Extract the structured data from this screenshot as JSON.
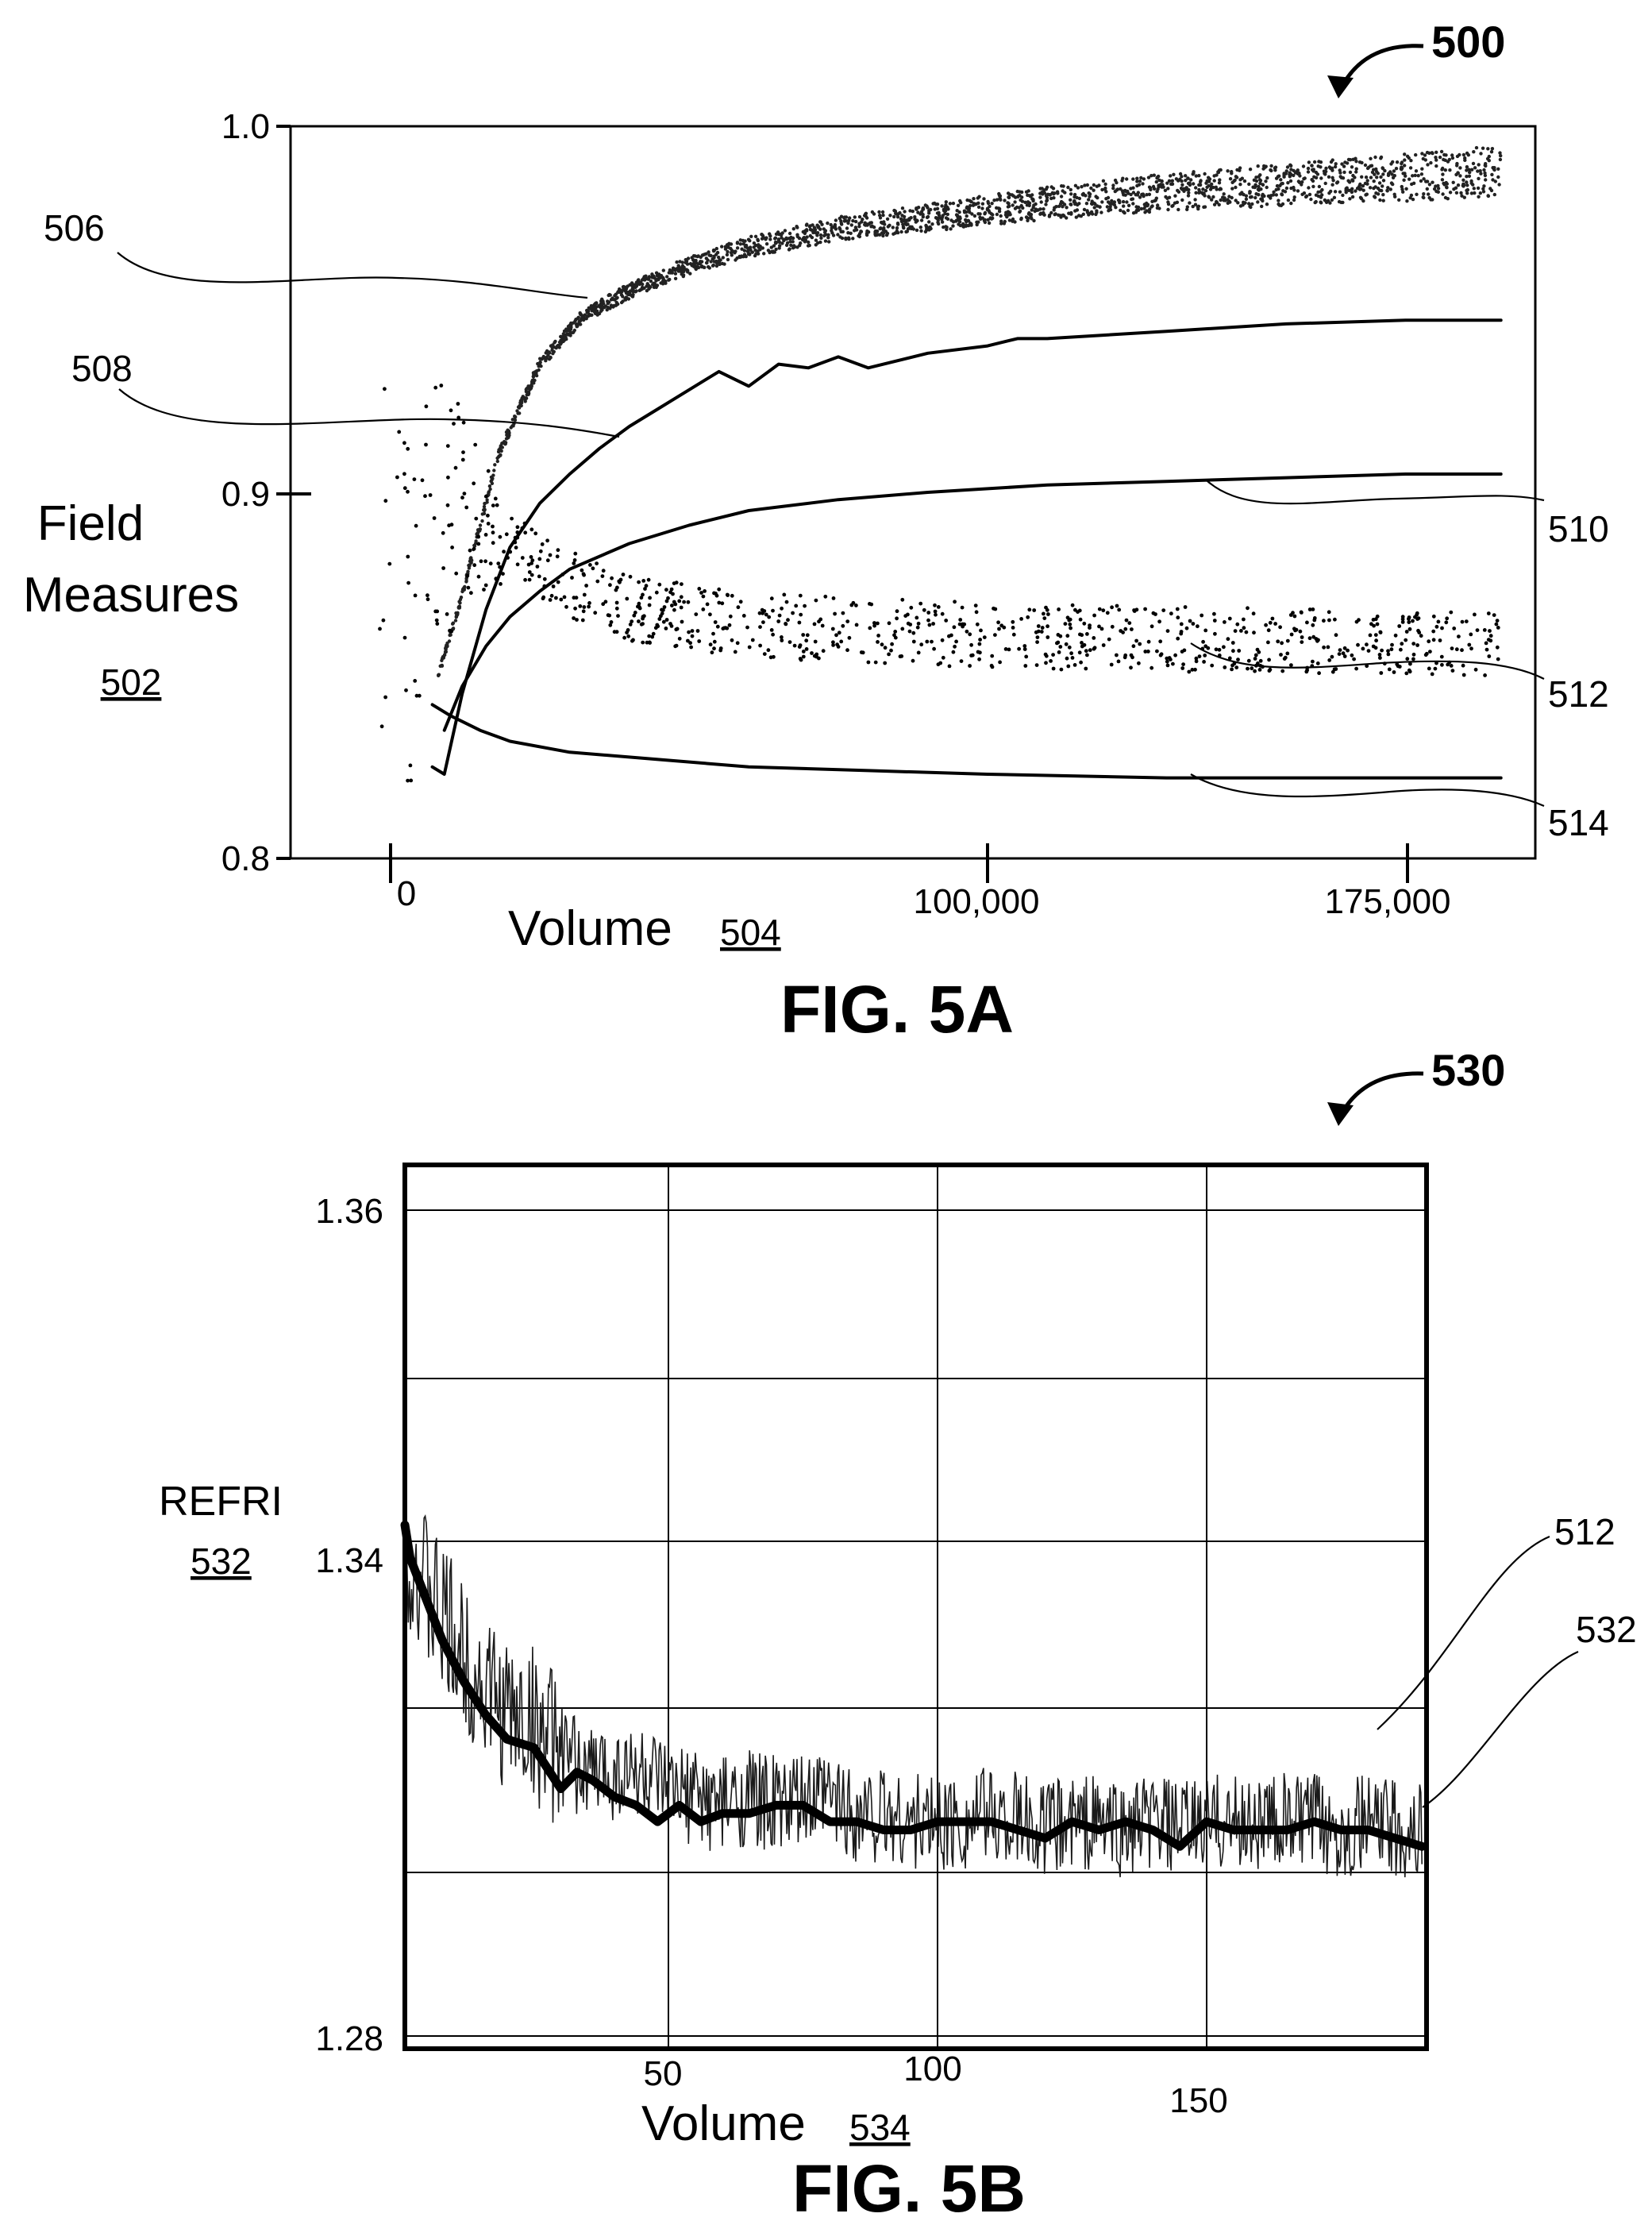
{
  "figures": {
    "fig5a": {
      "ref_number": "500",
      "caption": "FIG. 5A",
      "y_axis": {
        "label_line1": "Field",
        "label_line2": "Measures",
        "ref": "502",
        "ticks": [
          "1.0",
          "0.9",
          "0.8"
        ]
      },
      "x_axis": {
        "label": "Volume",
        "ref": "504",
        "ticks": [
          "0",
          "100,000",
          "175,000"
        ]
      },
      "callouts": [
        "506",
        "508",
        "510",
        "512",
        "514"
      ]
    },
    "fig5b": {
      "ref_number": "530",
      "caption": "FIG. 5B",
      "y_axis": {
        "label": "REFRI",
        "ref": "532",
        "ticks": [
          "1.36",
          "1.34",
          "1.28"
        ]
      },
      "x_axis": {
        "label": "Volume",
        "ref": "534",
        "ticks": [
          "50",
          "100",
          "150"
        ]
      },
      "callouts": [
        "512",
        "532"
      ]
    }
  },
  "chart_data": [
    {
      "type": "line",
      "xlim": [
        -2000,
        190000
      ],
      "ylim": [
        0.8,
        1.0
      ],
      "x_ticks": [
        0,
        100000,
        175000
      ],
      "y_ticks": [
        0.8,
        0.9,
        1.0
      ],
      "grid": false,
      "series": [
        {
          "name": "506",
          "style": "dense noisy band",
          "x": [
            8000,
            12000,
            18000,
            25000,
            32000,
            40000,
            50000,
            60000,
            75000,
            90000,
            110000,
            130000,
            150000,
            170000,
            186000
          ],
          "y": [
            0.85,
            0.872,
            0.91,
            0.935,
            0.948,
            0.955,
            0.962,
            0.967,
            0.972,
            0.975,
            0.979,
            0.982,
            0.984,
            0.986,
            0.988
          ]
        },
        {
          "name": "508",
          "style": "solid oscillating",
          "x": [
            7000,
            9000,
            12000,
            16000,
            20000,
            25000,
            30000,
            35000,
            40000,
            45000,
            50000,
            55000,
            60000,
            65000,
            70000,
            75000,
            80000,
            90000,
            100000,
            105000,
            110000,
            130000,
            150000,
            170000,
            186000
          ],
          "y": [
            0.825,
            0.823,
            0.845,
            0.868,
            0.885,
            0.897,
            0.905,
            0.912,
            0.918,
            0.923,
            0.928,
            0.933,
            0.929,
            0.935,
            0.934,
            0.937,
            0.934,
            0.938,
            0.94,
            0.942,
            0.942,
            0.944,
            0.946,
            0.947,
            0.947
          ]
        },
        {
          "name": "510",
          "style": "solid smooth",
          "x": [
            9000,
            12000,
            16000,
            20000,
            25000,
            30000,
            40000,
            50000,
            60000,
            75000,
            90000,
            110000,
            130000,
            150000,
            170000,
            186000
          ],
          "y": [
            0.835,
            0.847,
            0.858,
            0.866,
            0.873,
            0.879,
            0.886,
            0.891,
            0.895,
            0.898,
            0.9,
            0.902,
            0.903,
            0.904,
            0.905,
            0.905
          ]
        },
        {
          "name": "512",
          "style": "sparse dotted band",
          "x": [
            -2000,
            0,
            3000,
            6000,
            10000,
            15000,
            20000,
            30000,
            40000,
            60000,
            80000,
            100000,
            130000,
            160000,
            186000
          ],
          "y": [
            0.87,
            0.9,
            0.86,
            0.9,
            0.895,
            0.89,
            0.885,
            0.875,
            0.868,
            0.864,
            0.862,
            0.861,
            0.86,
            0.859,
            0.859
          ]
        },
        {
          "name": "514",
          "style": "solid decaying",
          "x": [
            7000,
            10000,
            15000,
            20000,
            30000,
            45000,
            60000,
            80000,
            100000,
            130000,
            160000,
            186000
          ],
          "y": [
            0.842,
            0.839,
            0.835,
            0.832,
            0.829,
            0.827,
            0.825,
            0.824,
            0.823,
            0.822,
            0.822,
            0.822
          ]
        }
      ]
    },
    {
      "type": "line",
      "xlim": [
        0,
        190
      ],
      "ylim": [
        1.28,
        1.37
      ],
      "x_ticks": [
        50,
        100,
        150
      ],
      "y_ticks": [
        1.28,
        1.34,
        1.36
      ],
      "grid": true,
      "grid_x": [
        50,
        100,
        150
      ],
      "grid_y": [
        1.3,
        1.31,
        1.34,
        1.35,
        1.36
      ],
      "series": [
        {
          "name": "512",
          "style": "thin noisy raw signal",
          "x": [
            0,
            2,
            5,
            10,
            15,
            20,
            25,
            30,
            35,
            40,
            45,
            50,
            55,
            60,
            65,
            70,
            75,
            80,
            85,
            90,
            95,
            100,
            105,
            110,
            115,
            120,
            125,
            130,
            135,
            140,
            145,
            150,
            155,
            160,
            165,
            170,
            175,
            180,
            185,
            190
          ],
          "y": [
            1.343,
            1.339,
            1.334,
            1.328,
            1.323,
            1.319,
            1.318,
            1.314,
            1.312,
            1.312,
            1.312,
            1.309,
            1.309,
            1.308,
            1.309,
            1.308,
            1.308,
            1.309,
            1.307,
            1.307,
            1.306,
            1.306,
            1.306,
            1.307,
            1.306,
            1.305,
            1.306,
            1.306,
            1.305,
            1.306,
            1.305,
            1.306,
            1.306,
            1.306,
            1.306,
            1.306,
            1.305,
            1.306,
            1.305,
            1.305
          ],
          "noise_amplitude": 0.006
        },
        {
          "name": "532",
          "style": "thick smoothed",
          "x": [
            0,
            2,
            5,
            8,
            12,
            16,
            20,
            25,
            30,
            33,
            36,
            40,
            44,
            48,
            52,
            56,
            60,
            65,
            70,
            75,
            80,
            85,
            90,
            95,
            100,
            105,
            110,
            115,
            120,
            125,
            130,
            135,
            140,
            145,
            150,
            155,
            160,
            165,
            170,
            175,
            180,
            185,
            190
          ],
          "y": [
            1.342,
            1.338,
            1.333,
            1.328,
            1.323,
            1.319,
            1.316,
            1.315,
            1.31,
            1.312,
            1.311,
            1.309,
            1.308,
            1.306,
            1.308,
            1.306,
            1.307,
            1.307,
            1.308,
            1.308,
            1.306,
            1.306,
            1.305,
            1.305,
            1.306,
            1.306,
            1.306,
            1.305,
            1.304,
            1.306,
            1.305,
            1.306,
            1.305,
            1.303,
            1.306,
            1.305,
            1.305,
            1.305,
            1.306,
            1.305,
            1.305,
            1.304,
            1.303
          ]
        }
      ]
    }
  ]
}
